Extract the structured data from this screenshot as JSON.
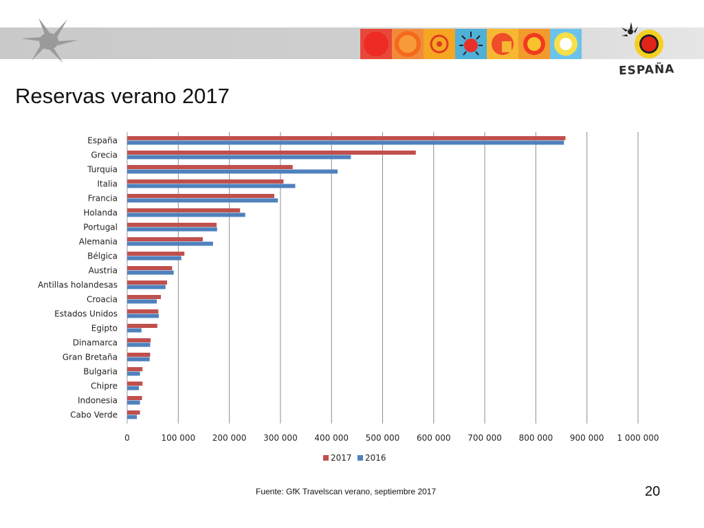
{
  "title": "Reservas verano 2017",
  "source": "Fuente: GfK Travelscan verano, septiembre 2017",
  "page_number": "20",
  "logo": {
    "text": "ESPAÑA",
    "icon": "spain-sun-logo-icon"
  },
  "colors": {
    "series_2017": "#c0504d",
    "series_2016": "#4f81bd",
    "grid": "#8c8c8c"
  },
  "chart_data": {
    "type": "bar",
    "orientation": "horizontal",
    "categories": [
      "España",
      "Grecia",
      "Turquia",
      "Italia",
      "Francia",
      "Holanda",
      "Portugal",
      "Alemania",
      "Bélgica",
      "Austria",
      "Antillas holandesas",
      "Croacia",
      "Estados Unidos",
      "Egipto",
      "Dinamarca",
      "Gran Bretaña",
      "Bulgaria",
      "Chipre",
      "Indonesia",
      "Cabo Verde"
    ],
    "series": [
      {
        "name": "2017",
        "color": "#c0504d",
        "values": [
          858000,
          565000,
          324000,
          306000,
          288000,
          221000,
          175000,
          148000,
          112000,
          88000,
          78000,
          66000,
          61000,
          59000,
          46000,
          45000,
          30000,
          30000,
          29000,
          25000
        ]
      },
      {
        "name": "2016",
        "color": "#4f81bd",
        "values": [
          855000,
          438000,
          412000,
          329000,
          295000,
          231000,
          176000,
          168000,
          106000,
          91000,
          75000,
          58000,
          62000,
          28000,
          45000,
          44000,
          25000,
          23000,
          25000,
          19000
        ]
      }
    ],
    "xlim": [
      0,
      1000000
    ],
    "xticks": [
      0,
      100000,
      200000,
      300000,
      400000,
      500000,
      600000,
      700000,
      800000,
      900000,
      1000000
    ],
    "xtick_labels": [
      "0",
      "100 000",
      "200 000",
      "300 000",
      "400 000",
      "500 000",
      "600 000",
      "700 000",
      "800 000",
      "900 000",
      "1 000 000"
    ],
    "grid": true,
    "legend": "bottom-center"
  }
}
